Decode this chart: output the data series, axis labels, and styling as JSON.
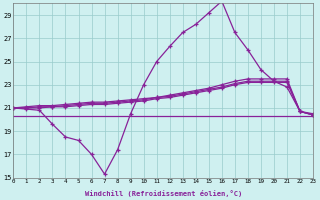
{
  "xlabel": "Windchill (Refroidissement éolien,°C)",
  "bg_color": "#cff0f0",
  "grid_color": "#99cccc",
  "line_color": "#882299",
  "x_hours": [
    0,
    1,
    2,
    3,
    4,
    5,
    6,
    7,
    8,
    9,
    10,
    11,
    12,
    13,
    14,
    15,
    16,
    17,
    18,
    19,
    20,
    21,
    22,
    23
  ],
  "series_main": [
    21.0,
    20.9,
    20.8,
    19.6,
    18.5,
    18.2,
    17.0,
    15.3,
    17.4,
    20.5,
    23.0,
    25.0,
    26.3,
    27.5,
    28.2,
    29.2,
    30.2,
    27.5,
    26.0,
    24.3,
    23.3,
    22.8,
    20.7,
    20.5
  ],
  "series_diag1": [
    21.0,
    21.1,
    21.2,
    21.2,
    21.3,
    21.4,
    21.5,
    21.5,
    21.6,
    21.7,
    21.8,
    21.9,
    22.1,
    22.3,
    22.5,
    22.7,
    23.0,
    23.3,
    23.5,
    23.5,
    23.5,
    23.5,
    20.7,
    20.4
  ],
  "series_diag2": [
    21.0,
    21.0,
    21.1,
    21.1,
    21.2,
    21.3,
    21.4,
    21.4,
    21.5,
    21.6,
    21.7,
    21.9,
    22.0,
    22.2,
    22.4,
    22.6,
    22.8,
    23.1,
    23.3,
    23.3,
    23.3,
    23.3,
    20.7,
    20.4
  ],
  "series_diag3": [
    21.0,
    21.0,
    21.0,
    21.1,
    21.1,
    21.2,
    21.3,
    21.3,
    21.4,
    21.5,
    21.6,
    21.8,
    21.9,
    22.1,
    22.3,
    22.5,
    22.7,
    23.0,
    23.2,
    23.2,
    23.2,
    23.2,
    20.7,
    20.4
  ],
  "flat_line_y": 20.3,
  "flat_line_x_start": 0,
  "flat_line_x_end": 23,
  "ylim": [
    15,
    30
  ],
  "yticks": [
    15,
    17,
    19,
    21,
    23,
    25,
    27,
    29
  ],
  "xlim_start": 0,
  "xlim_end": 23
}
